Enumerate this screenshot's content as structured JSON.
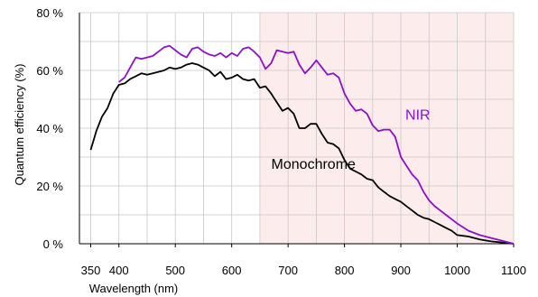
{
  "chart_data": {
    "type": "line",
    "title": "",
    "xlabel": "Wavelength (nm)",
    "ylabel": "Quantum efficiency (%)",
    "xlim": [
      330,
      1100
    ],
    "ylim": [
      0,
      80
    ],
    "grid": true,
    "x_ticks": [
      350,
      400,
      500,
      600,
      700,
      800,
      900,
      1000,
      1100
    ],
    "x_tick_labels": [
      "350",
      "400",
      "500",
      "600",
      "700",
      "800",
      "900",
      "1000",
      "1100"
    ],
    "y_ticks": [
      0,
      20,
      40,
      60,
      80
    ],
    "y_tick_labels": [
      "0 %",
      "20 %",
      "40 %",
      "60 %",
      "80 %"
    ],
    "shaded_region": {
      "x_from": 650,
      "x_to": 1100,
      "color": "#fdecec"
    },
    "series": [
      {
        "name": "Monochrome",
        "color": "#000000",
        "x": [
          350,
          360,
          370,
          380,
          390,
          400,
          410,
          420,
          430,
          440,
          450,
          460,
          470,
          480,
          490,
          500,
          510,
          520,
          530,
          540,
          550,
          560,
          570,
          580,
          590,
          600,
          610,
          620,
          630,
          640,
          650,
          660,
          670,
          680,
          690,
          700,
          710,
          720,
          730,
          740,
          750,
          760,
          770,
          780,
          790,
          800,
          810,
          820,
          830,
          840,
          850,
          860,
          870,
          880,
          890,
          900,
          910,
          920,
          930,
          940,
          950,
          960,
          970,
          980,
          990,
          1000,
          1020,
          1040,
          1060,
          1080,
          1100
        ],
        "values": [
          32.5,
          39,
          44,
          47,
          52,
          55,
          55.5,
          57,
          58,
          59,
          58.5,
          59,
          59.5,
          60,
          61,
          60.5,
          61,
          62,
          62.5,
          62,
          61,
          60,
          58,
          59.5,
          57,
          57.5,
          58.5,
          57,
          56.5,
          57,
          54,
          54.5,
          52,
          49,
          46,
          47,
          45,
          40,
          40,
          41.5,
          41.5,
          38,
          35,
          34.5,
          33,
          29,
          26,
          25,
          24,
          22.5,
          22,
          19.5,
          18,
          16.5,
          15.5,
          14.5,
          13,
          11.5,
          10,
          9,
          8.5,
          7.5,
          6.5,
          5.5,
          4.5,
          3,
          2.5,
          1.5,
          0.8,
          0.4,
          0
        ]
      },
      {
        "name": "NIR",
        "color": "#8b10c8",
        "x": [
          400,
          410,
          420,
          430,
          440,
          450,
          460,
          470,
          480,
          490,
          500,
          510,
          520,
          530,
          540,
          550,
          560,
          570,
          580,
          590,
          600,
          610,
          620,
          630,
          640,
          650,
          660,
          670,
          680,
          690,
          700,
          710,
          720,
          730,
          740,
          750,
          760,
          770,
          780,
          790,
          800,
          810,
          820,
          830,
          840,
          850,
          860,
          870,
          880,
          890,
          900,
          910,
          920,
          930,
          940,
          950,
          960,
          970,
          980,
          990,
          1000,
          1020,
          1040,
          1060,
          1080,
          1100
        ],
        "values": [
          56,
          57.5,
          61,
          64.5,
          64,
          64.5,
          65,
          66.5,
          68,
          68.5,
          67,
          65.5,
          64.5,
          67.5,
          68,
          66.5,
          65.5,
          65,
          66,
          64.5,
          66,
          65,
          67.5,
          68,
          66.5,
          64.5,
          60.5,
          62.5,
          67,
          66.5,
          66,
          66.5,
          62,
          59,
          61,
          63.5,
          61,
          58.5,
          59,
          57.5,
          52,
          48.5,
          46,
          46.5,
          45,
          41,
          39,
          39.5,
          39.5,
          37,
          30,
          27,
          24,
          22,
          18,
          15,
          13,
          11.5,
          10,
          8.5,
          7,
          4.5,
          3,
          2,
          1,
          0
        ]
      }
    ],
    "annotations": [
      {
        "text": "NIR",
        "x": 930,
        "y": 43,
        "color": "#8b10c8"
      },
      {
        "text": "Monochrome",
        "x": 745,
        "y": 26,
        "color": "#000000"
      }
    ]
  }
}
